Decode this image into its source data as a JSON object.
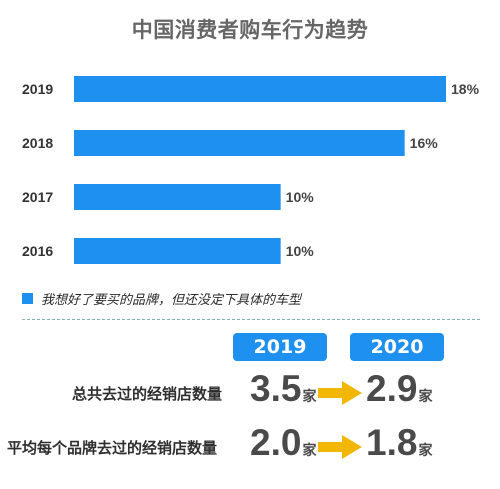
{
  "title": "中国消费者购车行为趋势",
  "colors": {
    "bar": "#1e90f0",
    "accent": "#f2b705",
    "badge": "#1e90f0"
  },
  "chart_data": {
    "type": "bar",
    "orientation": "horizontal",
    "title": "中国消费者购车行为趋势",
    "categories": [
      "2019",
      "2018",
      "2017",
      "2016"
    ],
    "values": [
      18,
      16,
      10,
      10
    ],
    "value_labels": [
      "18%",
      "16%",
      "10%",
      "10%"
    ],
    "series": [
      {
        "name": "我想好了要买的品牌，但还没定下具体的车型",
        "values": [
          18,
          16,
          10,
          10
        ]
      }
    ],
    "xlim": [
      0,
      18
    ],
    "xlabel": "",
    "ylabel": "",
    "grid": false,
    "legend": "bottom-left"
  },
  "legend": {
    "label": "我想好了要买的品牌，但还没定下具体的车型"
  },
  "comparison": {
    "years": [
      "2019",
      "2020"
    ],
    "rows": [
      {
        "label": "总共去过的经销店数量",
        "v2019": "3.5",
        "v2020": "2.9",
        "unit": "家"
      },
      {
        "label": "平均每个品牌去过的经销店数量",
        "v2019": "2.0",
        "v2020": "1.8",
        "unit": "家"
      }
    ],
    "arrow_icon": "right-arrow-icon"
  }
}
